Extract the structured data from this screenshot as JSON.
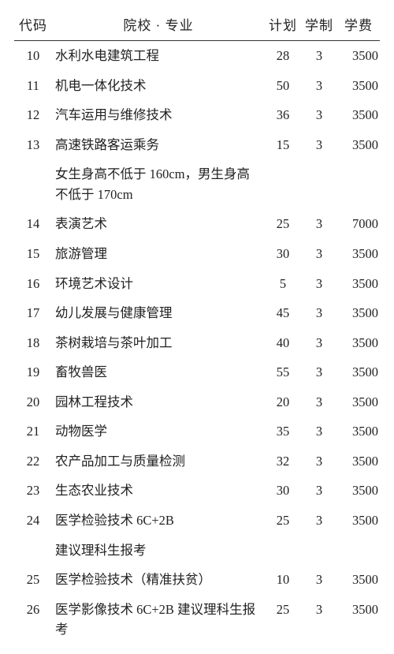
{
  "header": {
    "code": "代码",
    "major": "院校 · 专业",
    "plan": "计划",
    "years": "学制",
    "fee": "学费"
  },
  "rows": [
    {
      "code": "10",
      "major": "水利水电建筑工程",
      "plan": "28",
      "years": "3",
      "fee": "3500"
    },
    {
      "code": "11",
      "major": "机电一体化技术",
      "plan": "50",
      "years": "3",
      "fee": "3500"
    },
    {
      "code": "12",
      "major": "汽车运用与维修技术",
      "plan": "36",
      "years": "3",
      "fee": "3500"
    },
    {
      "code": "13",
      "major": "高速铁路客运乘务",
      "plan": "15",
      "years": "3",
      "fee": "3500",
      "note": "女生身高不低于 160cm，男生身高不低于 170cm"
    },
    {
      "code": "14",
      "major": "表演艺术",
      "plan": "25",
      "years": "3",
      "fee": "7000"
    },
    {
      "code": "15",
      "major": "旅游管理",
      "plan": "30",
      "years": "3",
      "fee": "3500"
    },
    {
      "code": "16",
      "major": "环境艺术设计",
      "plan": "5",
      "years": "3",
      "fee": "3500"
    },
    {
      "code": "17",
      "major": "幼儿发展与健康管理",
      "plan": "45",
      "years": "3",
      "fee": "3500"
    },
    {
      "code": "18",
      "major": "茶树栽培与茶叶加工",
      "plan": "40",
      "years": "3",
      "fee": "3500"
    },
    {
      "code": "19",
      "major": "畜牧兽医",
      "plan": "55",
      "years": "3",
      "fee": "3500"
    },
    {
      "code": "20",
      "major": "园林工程技术",
      "plan": "20",
      "years": "3",
      "fee": "3500"
    },
    {
      "code": "21",
      "major": "动物医学",
      "plan": "35",
      "years": "3",
      "fee": "3500"
    },
    {
      "code": "22",
      "major": "农产品加工与质量检测",
      "plan": "32",
      "years": "3",
      "fee": "3500"
    },
    {
      "code": "23",
      "major": "生态农业技术",
      "plan": "30",
      "years": "3",
      "fee": "3500"
    },
    {
      "code": "24",
      "major": "医学检验技术 6C+2B",
      "plan": "25",
      "years": "3",
      "fee": "3500",
      "note": "建议理科生报考"
    },
    {
      "code": "25",
      "major": "医学检验技术（精准扶贫）",
      "plan": "10",
      "years": "3",
      "fee": "3500"
    },
    {
      "code": "26",
      "major": "医学影像技术 6C+2B 建议理科生报考",
      "plan": "25",
      "years": "3",
      "fee": "3500"
    }
  ]
}
